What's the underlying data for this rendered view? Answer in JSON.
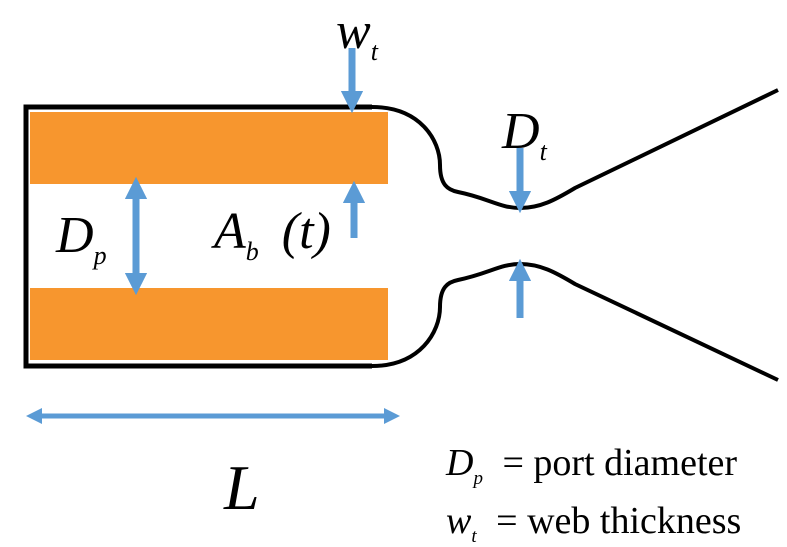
{
  "labels": {
    "wt": {
      "main": "w",
      "sub": "t"
    },
    "dt": {
      "main": "D",
      "sub": "t"
    },
    "dp": {
      "main": "D",
      "sub": "p"
    },
    "ab": {
      "main": "A",
      "sub": "b",
      "arg": "(t)"
    },
    "l": {
      "main": "L"
    }
  },
  "legend": [
    {
      "sym": "D",
      "sub": "p",
      "eq": "=",
      "text": "port diameter"
    },
    {
      "sym": "w",
      "sub": "t",
      "eq": "=",
      "text": "web thickness"
    }
  ],
  "colors": {
    "propellant": "#f7962e",
    "arrow": "#5b9bd5",
    "outline": "#000000"
  }
}
